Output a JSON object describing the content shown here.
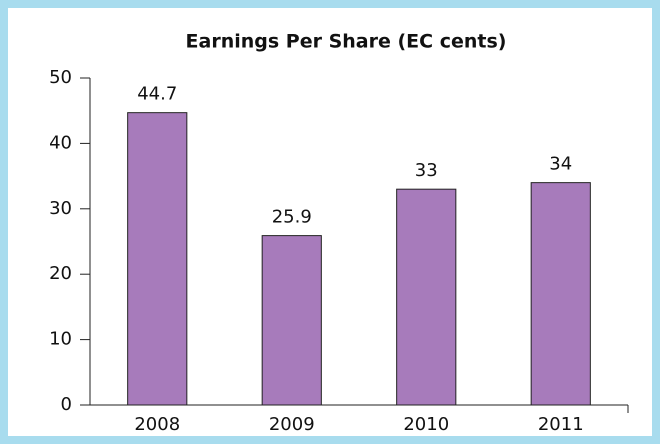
{
  "chart_data": {
    "type": "bar",
    "title": "Earnings Per Share (EC cents)",
    "categories": [
      "2008",
      "2009",
      "2010",
      "2011"
    ],
    "values": [
      44.7,
      25.9,
      33,
      34
    ],
    "color": "#a77bbb",
    "ylim": [
      0,
      50
    ],
    "yticks": [
      0,
      10,
      20,
      30,
      40,
      50
    ]
  }
}
